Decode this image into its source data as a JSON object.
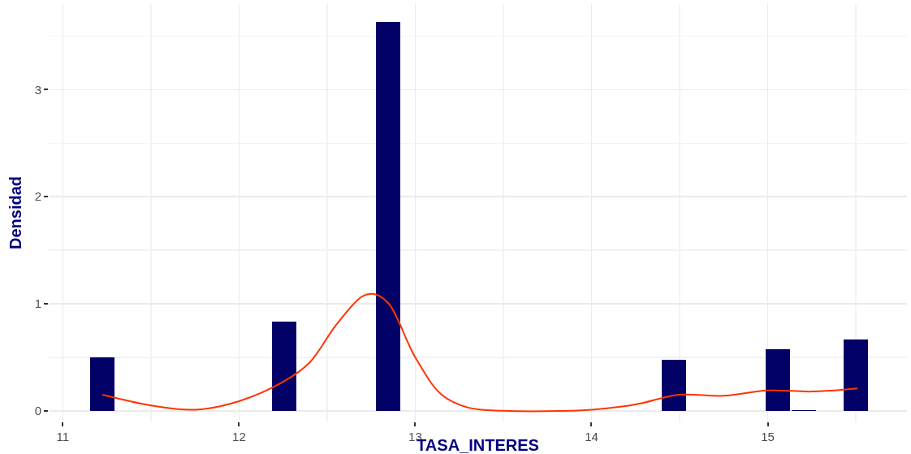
{
  "chart_data": {
    "type": "histogram",
    "xlabel": "TASA_INTERES",
    "ylabel": "Densidad",
    "bins": [
      11.15,
      11.2975,
      11.445,
      11.5925,
      11.74,
      11.8875,
      12.035,
      12.1825,
      12.33,
      12.4775,
      12.625,
      12.7725,
      12.92,
      13.0675,
      13.215,
      13.3625,
      13.51,
      13.6575,
      13.805,
      13.9525,
      14.1,
      14.2475,
      14.395,
      14.5425,
      14.69,
      14.8375,
      14.985,
      15.1325,
      15.28,
      15.4275,
      15.575
    ],
    "values": [
      0.5,
      0,
      0,
      0,
      0,
      0,
      0,
      0.83,
      0,
      0,
      0,
      3.63,
      0,
      0,
      0,
      0,
      0,
      0,
      0,
      0,
      0,
      0,
      0.48,
      0,
      0,
      0,
      0.575,
      0.01,
      0,
      0.67
    ],
    "color": "#000066",
    "series": [
      {
        "type": "line",
        "color": "#ff3300",
        "x": [
          11.225,
          11.5,
          11.75,
          12.0,
          12.25,
          12.4,
          12.55,
          12.7,
          12.77,
          12.85,
          13.0,
          13.15,
          13.3,
          13.5,
          14.0,
          14.25,
          14.5,
          14.75,
          15.0,
          15.25,
          15.51
        ],
        "values": [
          0.15,
          0.05,
          0.01,
          0.09,
          0.27,
          0.45,
          0.8,
          1.07,
          1.09,
          1.0,
          0.5,
          0.15,
          0.03,
          0.0,
          0.01,
          0.06,
          0.15,
          0.14,
          0.19,
          0.18,
          0.21
        ]
      }
    ],
    "xlim": [
      10.92,
      15.79
    ],
    "ylim": [
      -0.1,
      3.8
    ],
    "xticks": [
      11,
      12,
      13,
      14,
      15
    ],
    "yticks": [
      0,
      1,
      2,
      3
    ],
    "grid": true
  }
}
